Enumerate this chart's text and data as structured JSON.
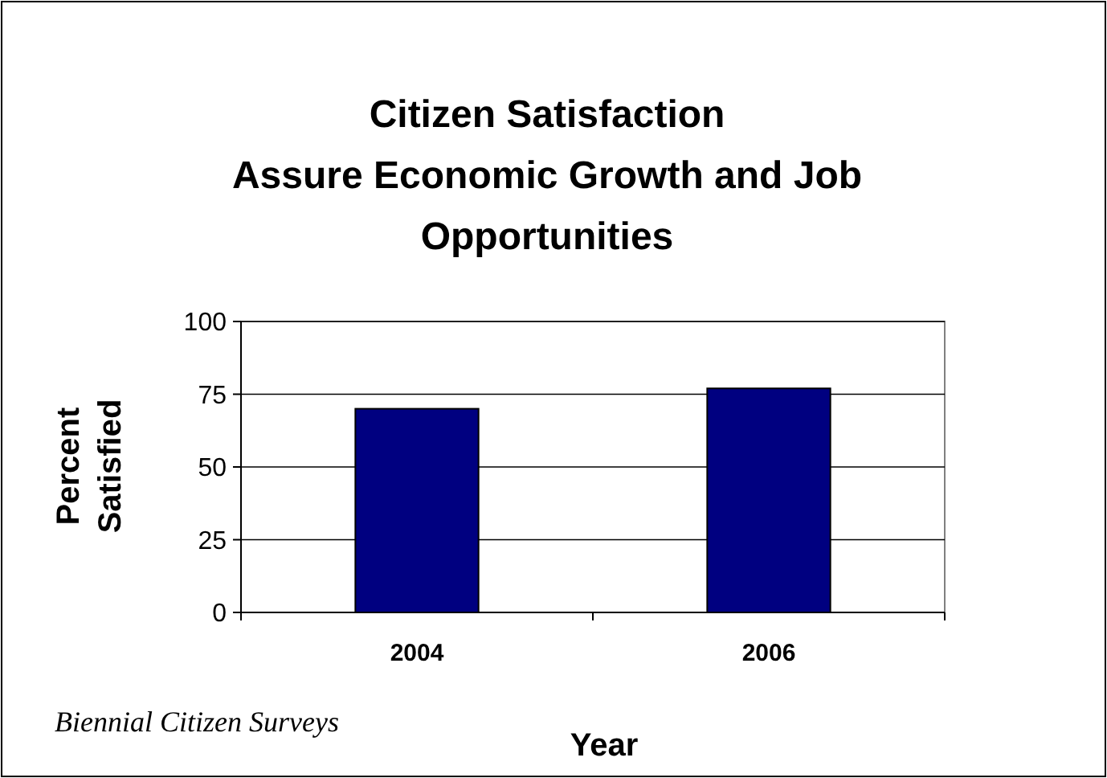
{
  "chart_data": {
    "type": "bar",
    "title": "Citizen Satisfaction\nAssure Economic Growth and Job\nOpportunities",
    "xlabel": "Year",
    "ylabel": "Percent\nSatisfied",
    "categories": [
      "2004",
      "2006"
    ],
    "values": [
      70,
      77
    ],
    "color": "#000080",
    "ylim": [
      0,
      100
    ],
    "yticks": [
      0,
      25,
      50,
      75,
      100
    ],
    "grid": "y",
    "annotations": [
      "Biennial Citizen Surveys"
    ]
  }
}
